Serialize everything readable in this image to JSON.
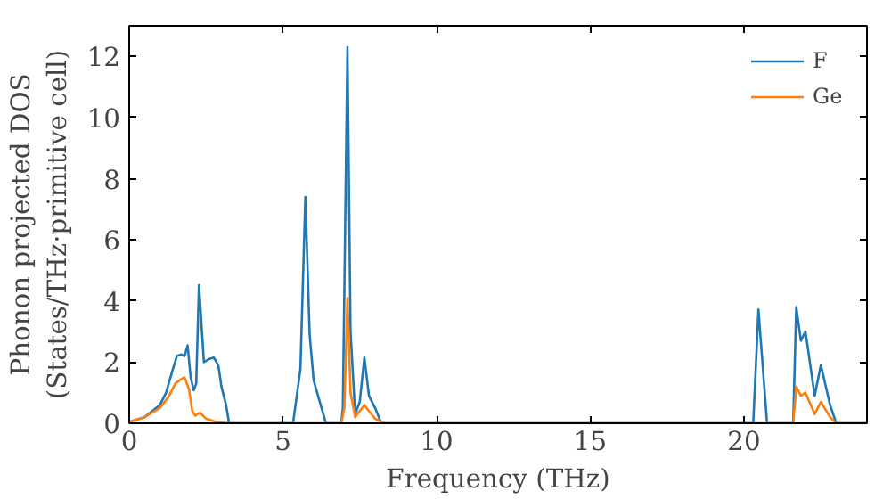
{
  "chart_data": {
    "type": "line",
    "xlabel": "Frequency (THz)",
    "ylabel": "Phonon projected DOS\n(States/THz·primitive cell)",
    "xlim": [
      0,
      24
    ],
    "ylim": [
      0,
      13
    ],
    "xticks": [
      0,
      5,
      10,
      15,
      20
    ],
    "yticks": [
      0,
      2,
      4,
      6,
      8,
      10,
      12
    ],
    "grid": false,
    "legend": "top right",
    "series": [
      {
        "name": "F",
        "color": "#1f77b4",
        "x": [
          0,
          0.5,
          1.0,
          1.2,
          1.4,
          1.55,
          1.7,
          1.8,
          1.9,
          2.0,
          2.1,
          2.18,
          2.27,
          2.43,
          2.6,
          2.75,
          2.9,
          3.0,
          3.15,
          3.25,
          5.33,
          5.57,
          5.73,
          5.87,
          6.0,
          6.4,
          6.9,
          6.95,
          7.1,
          7.2,
          7.35,
          7.5,
          7.65,
          7.8,
          8.0,
          8.2,
          20.3,
          20.47,
          20.75,
          21.6,
          21.7,
          21.85,
          22.0,
          22.3,
          22.5,
          22.8,
          23.0,
          24
        ],
        "values": [
          0.05,
          0.2,
          0.6,
          1.0,
          1.7,
          2.2,
          2.25,
          2.2,
          2.55,
          1.5,
          1.08,
          1.3,
          4.52,
          2.0,
          2.1,
          2.15,
          1.9,
          1.2,
          0.6,
          0,
          0,
          1.78,
          7.4,
          2.9,
          1.4,
          0,
          0,
          0.5,
          12.3,
          3.0,
          0.3,
          0.7,
          2.15,
          0.9,
          0.5,
          0,
          0,
          3.72,
          0,
          0,
          3.8,
          2.7,
          3.0,
          0.9,
          1.9,
          0.6,
          0,
          0
        ]
      },
      {
        "name": "Ge",
        "color": "#ff7f0e",
        "x": [
          0,
          0.5,
          1.0,
          1.3,
          1.5,
          1.7,
          1.8,
          1.95,
          2.05,
          2.15,
          2.3,
          2.5,
          2.8,
          3.2,
          6.9,
          7.0,
          7.1,
          7.2,
          7.35,
          7.5,
          7.65,
          7.8,
          8.0,
          8.3,
          21.6,
          21.7,
          21.85,
          22.0,
          22.3,
          22.5,
          22.8,
          23.0,
          24
        ],
        "values": [
          0.05,
          0.2,
          0.5,
          0.9,
          1.3,
          1.45,
          1.5,
          1.1,
          0.4,
          0.25,
          0.35,
          0.15,
          0.05,
          0,
          0,
          0.5,
          4.1,
          1.0,
          0.2,
          0.4,
          0.6,
          0.4,
          0.15,
          0,
          0,
          1.2,
          0.9,
          1.0,
          0.3,
          0.7,
          0.2,
          0,
          0
        ]
      }
    ]
  }
}
